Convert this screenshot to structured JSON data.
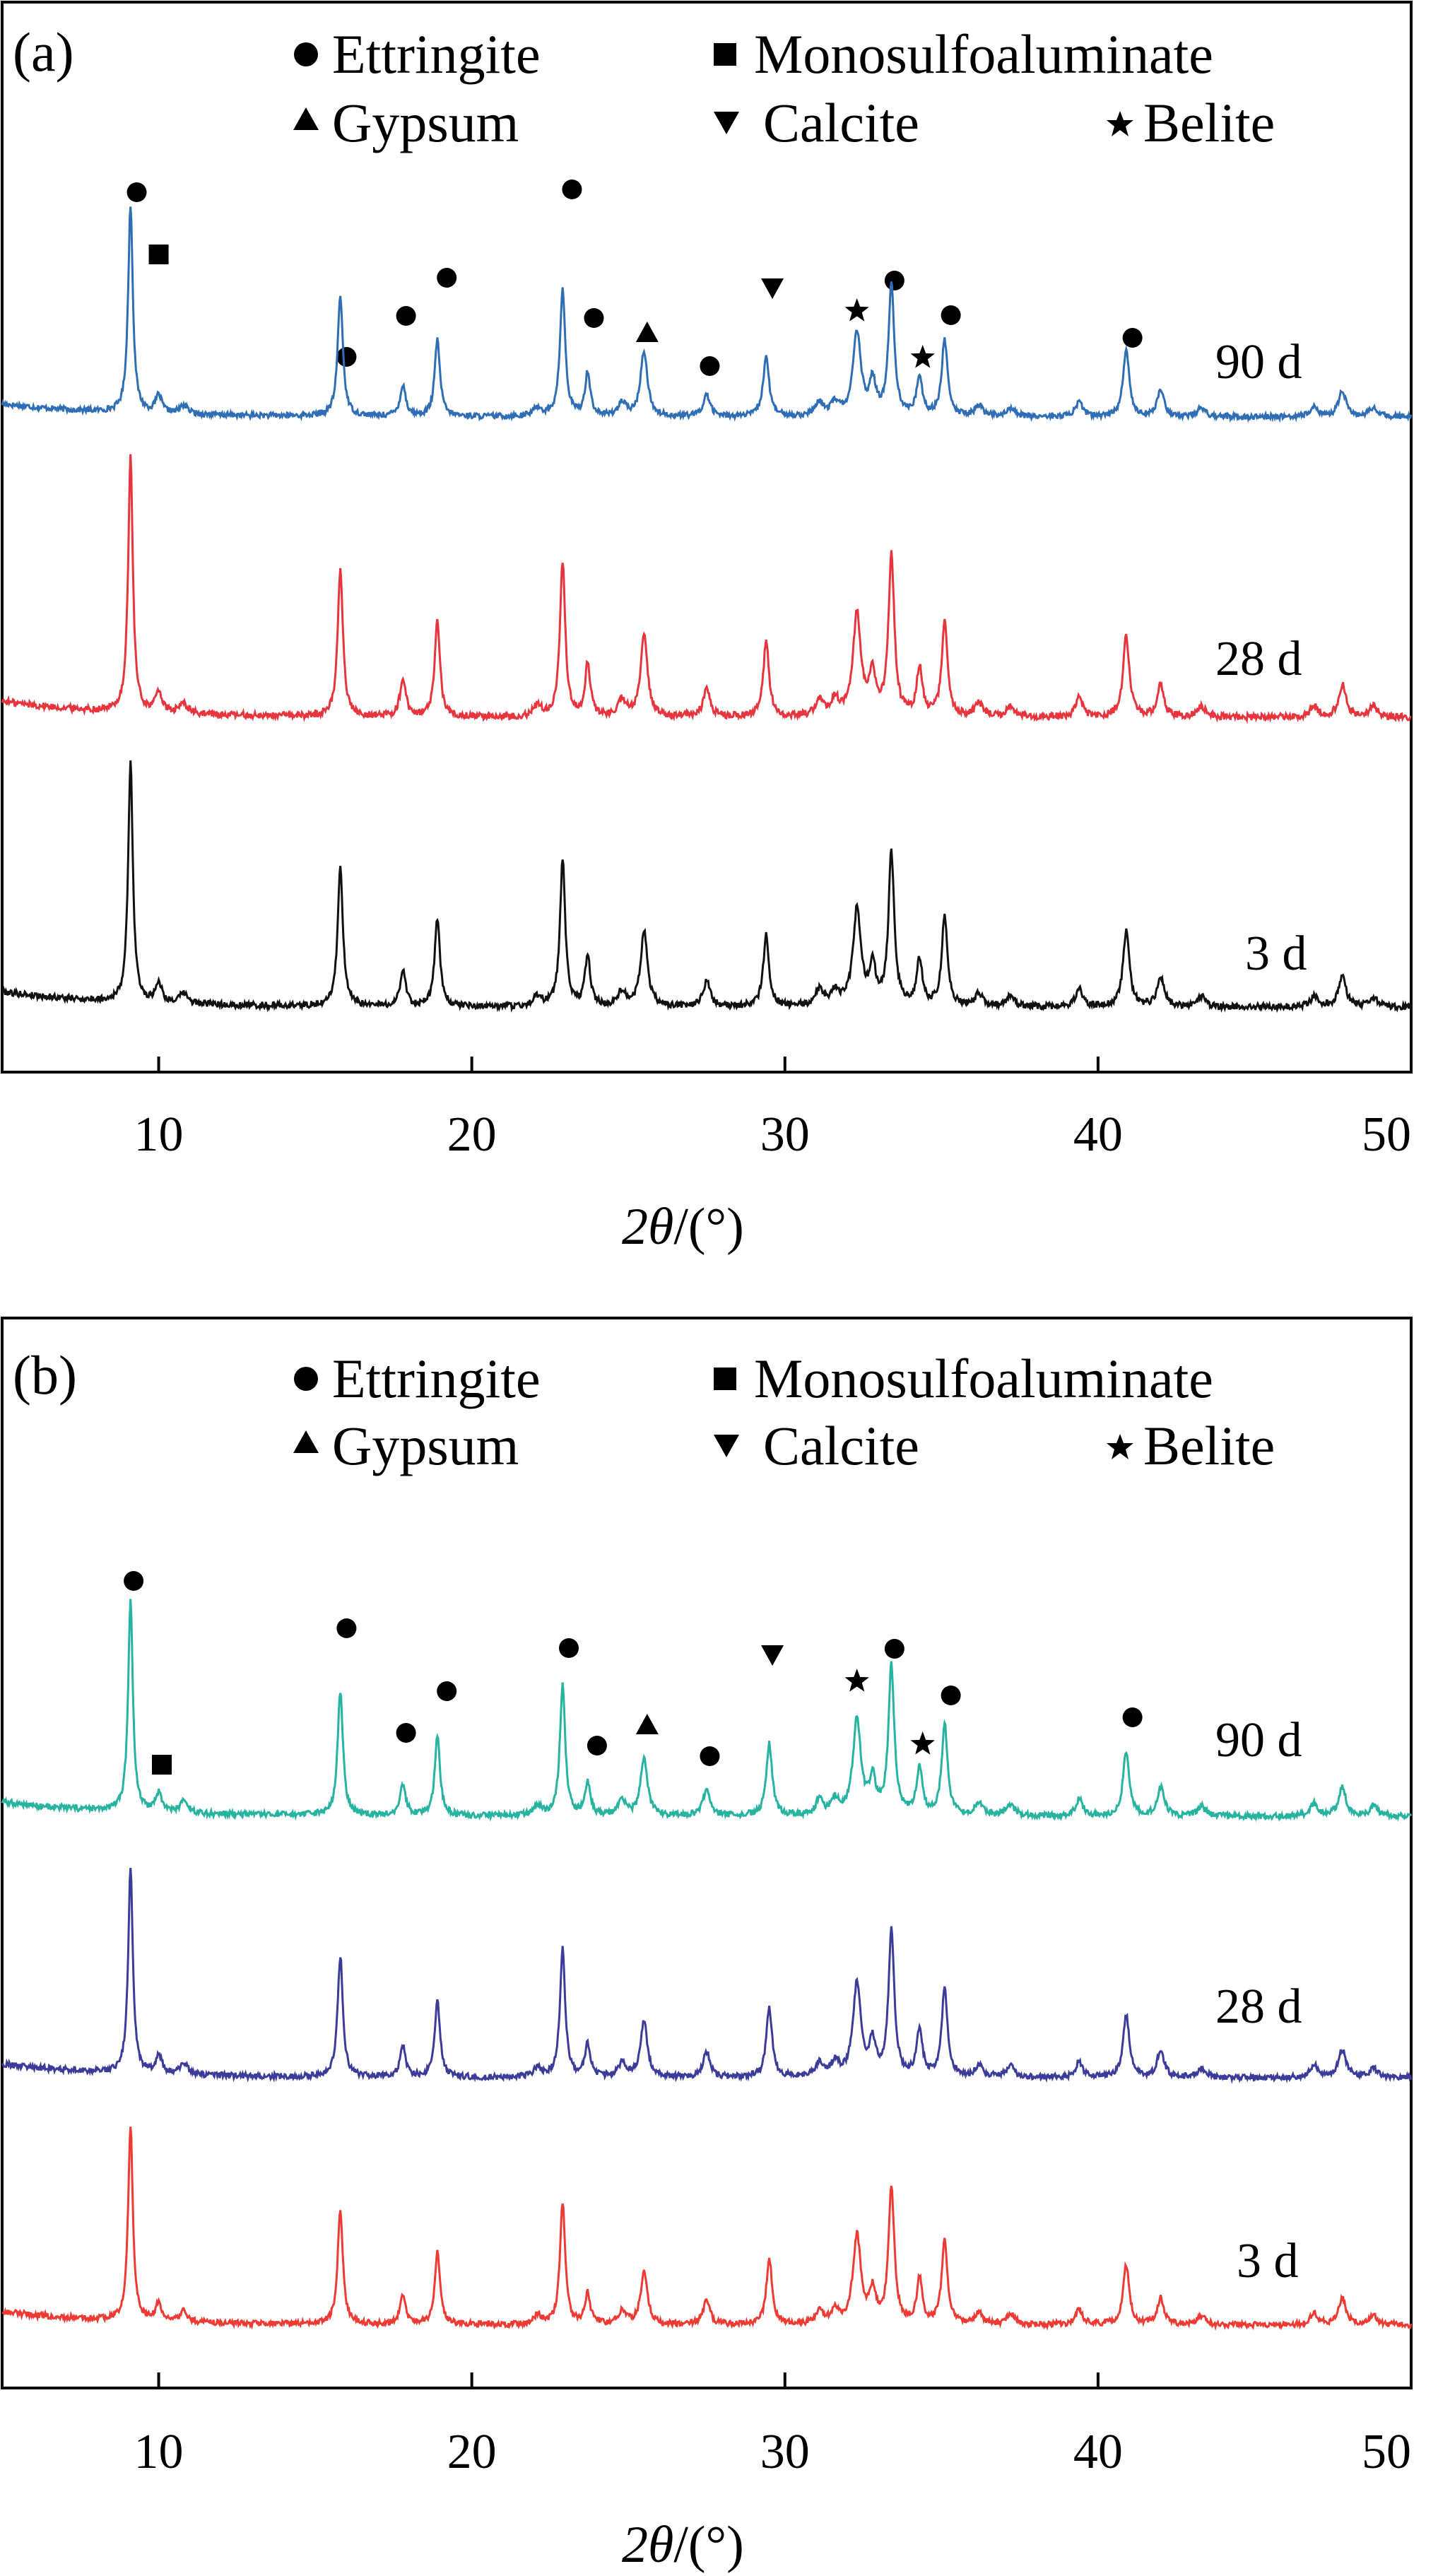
{
  "chart_data": [
    {
      "type": "line",
      "panel_label": "(a)",
      "xlabel_main": "2θ",
      "xlabel_unit": "/(°)",
      "xlim": [
        5,
        50
      ],
      "xticks": [
        10,
        20,
        30,
        40,
        50
      ],
      "y_ticks_shown": false,
      "grid": false,
      "legend": [
        {
          "marker": "circle",
          "name": "Ettringite"
        },
        {
          "marker": "square",
          "name": "Monosulfoaluminate"
        },
        {
          "marker": "triangle-up",
          "name": "Gypsum"
        },
        {
          "marker": "triangle-down",
          "name": "Calcite"
        },
        {
          "marker": "star",
          "name": "Belite"
        }
      ],
      "series": [
        {
          "name": "90 d",
          "color": "#2f6db5"
        },
        {
          "name": "28 d",
          "color": "#e8343c"
        },
        {
          "name": "3 d",
          "color": "#111111"
        }
      ],
      "peaks": [
        {
          "x": 9.1,
          "h": 0.95,
          "w": 0.09
        },
        {
          "x": 10.0,
          "h": 0.08,
          "w": 0.12
        },
        {
          "x": 10.8,
          "h": 0.04,
          "w": 0.15
        },
        {
          "x": 15.8,
          "h": 0.55,
          "w": 0.1
        },
        {
          "x": 17.8,
          "h": 0.14,
          "w": 0.11
        },
        {
          "x": 18.9,
          "h": 0.35,
          "w": 0.1
        },
        {
          "x": 22.1,
          "h": 0.04,
          "w": 0.15
        },
        {
          "x": 22.9,
          "h": 0.58,
          "w": 0.1
        },
        {
          "x": 23.7,
          "h": 0.2,
          "w": 0.1
        },
        {
          "x": 24.8,
          "h": 0.06,
          "w": 0.15
        },
        {
          "x": 25.5,
          "h": 0.3,
          "w": 0.13
        },
        {
          "x": 27.5,
          "h": 0.1,
          "w": 0.13
        },
        {
          "x": 29.4,
          "h": 0.28,
          "w": 0.11
        },
        {
          "x": 31.1,
          "h": 0.06,
          "w": 0.15
        },
        {
          "x": 31.6,
          "h": 0.06,
          "w": 0.15
        },
        {
          "x": 32.3,
          "h": 0.38,
          "w": 0.15
        },
        {
          "x": 32.8,
          "h": 0.15,
          "w": 0.12
        },
        {
          "x": 33.4,
          "h": 0.6,
          "w": 0.11
        },
        {
          "x": 34.3,
          "h": 0.18,
          "w": 0.11
        },
        {
          "x": 35.1,
          "h": 0.35,
          "w": 0.11
        },
        {
          "x": 36.2,
          "h": 0.05,
          "w": 0.15
        },
        {
          "x": 37.2,
          "h": 0.04,
          "w": 0.15
        },
        {
          "x": 39.4,
          "h": 0.07,
          "w": 0.13
        },
        {
          "x": 40.9,
          "h": 0.3,
          "w": 0.12
        },
        {
          "x": 42.0,
          "h": 0.12,
          "w": 0.13
        },
        {
          "x": 43.3,
          "h": 0.04,
          "w": 0.15
        },
        {
          "x": 46.9,
          "h": 0.04,
          "w": 0.15
        },
        {
          "x": 47.8,
          "h": 0.12,
          "w": 0.14
        },
        {
          "x": 48.8,
          "h": 0.04,
          "w": 0.15
        }
      ],
      "annotations": [
        {
          "marker": "circle",
          "x": 9.3
        },
        {
          "marker": "square",
          "x": 10.0
        },
        {
          "marker": "circle",
          "x": 16.0
        },
        {
          "marker": "circle",
          "x": 17.9
        },
        {
          "marker": "circle",
          "x": 19.2
        },
        {
          "marker": "circle",
          "x": 23.2
        },
        {
          "marker": "circle",
          "x": 23.9
        },
        {
          "marker": "triangle-up",
          "x": 25.6
        },
        {
          "marker": "circle",
          "x": 27.6
        },
        {
          "marker": "triangle-down",
          "x": 29.6
        },
        {
          "marker": "star",
          "x": 32.3
        },
        {
          "marker": "circle",
          "x": 33.5
        },
        {
          "marker": "star",
          "x": 34.4
        },
        {
          "marker": "circle",
          "x": 35.3
        },
        {
          "marker": "circle",
          "x": 41.1
        }
      ]
    },
    {
      "type": "line",
      "panel_label": "(b)",
      "xlabel_main": "2θ",
      "xlabel_unit": "/(°)",
      "xlim": [
        5,
        50
      ],
      "xticks": [
        10,
        20,
        30,
        40,
        50
      ],
      "y_ticks_shown": false,
      "grid": false,
      "legend": [
        {
          "marker": "circle",
          "name": "Ettringite"
        },
        {
          "marker": "square",
          "name": "Monosulfoaluminate"
        },
        {
          "marker": "triangle-up",
          "name": "Gypsum"
        },
        {
          "marker": "triangle-down",
          "name": "Calcite"
        },
        {
          "marker": "star",
          "name": "Belite"
        }
      ],
      "series": [
        {
          "name": "90 d",
          "color": "#26b3a0"
        },
        {
          "name": "28 d",
          "color": "#3b3b9a"
        },
        {
          "name": "3 d",
          "color": "#ee3a33"
        }
      ],
      "peaks": [
        {
          "x": 9.1,
          "h": 0.88,
          "w": 0.09
        },
        {
          "x": 10.0,
          "h": 0.08,
          "w": 0.12
        },
        {
          "x": 10.8,
          "h": 0.05,
          "w": 0.15
        },
        {
          "x": 15.8,
          "h": 0.52,
          "w": 0.1
        },
        {
          "x": 17.8,
          "h": 0.13,
          "w": 0.11
        },
        {
          "x": 18.9,
          "h": 0.33,
          "w": 0.1
        },
        {
          "x": 22.1,
          "h": 0.04,
          "w": 0.15
        },
        {
          "x": 22.9,
          "h": 0.55,
          "w": 0.1
        },
        {
          "x": 23.7,
          "h": 0.14,
          "w": 0.1
        },
        {
          "x": 24.8,
          "h": 0.06,
          "w": 0.15
        },
        {
          "x": 25.5,
          "h": 0.24,
          "w": 0.13
        },
        {
          "x": 27.5,
          "h": 0.11,
          "w": 0.13
        },
        {
          "x": 29.5,
          "h": 0.3,
          "w": 0.11
        },
        {
          "x": 31.1,
          "h": 0.06,
          "w": 0.15
        },
        {
          "x": 31.6,
          "h": 0.06,
          "w": 0.15
        },
        {
          "x": 32.3,
          "h": 0.4,
          "w": 0.15
        },
        {
          "x": 32.8,
          "h": 0.14,
          "w": 0.12
        },
        {
          "x": 33.4,
          "h": 0.62,
          "w": 0.11
        },
        {
          "x": 34.3,
          "h": 0.2,
          "w": 0.11
        },
        {
          "x": 35.1,
          "h": 0.38,
          "w": 0.11
        },
        {
          "x": 36.2,
          "h": 0.05,
          "w": 0.15
        },
        {
          "x": 37.2,
          "h": 0.05,
          "w": 0.15
        },
        {
          "x": 39.4,
          "h": 0.07,
          "w": 0.13
        },
        {
          "x": 40.9,
          "h": 0.27,
          "w": 0.12
        },
        {
          "x": 42.0,
          "h": 0.12,
          "w": 0.13
        },
        {
          "x": 43.3,
          "h": 0.04,
          "w": 0.15
        },
        {
          "x": 46.9,
          "h": 0.05,
          "w": 0.15
        },
        {
          "x": 47.8,
          "h": 0.12,
          "w": 0.14
        },
        {
          "x": 48.8,
          "h": 0.04,
          "w": 0.15
        }
      ],
      "annotations": [
        {
          "marker": "circle",
          "x": 9.2
        },
        {
          "marker": "square",
          "x": 10.1
        },
        {
          "marker": "circle",
          "x": 16.0
        },
        {
          "marker": "circle",
          "x": 17.9
        },
        {
          "marker": "circle",
          "x": 19.2
        },
        {
          "marker": "circle",
          "x": 23.1
        },
        {
          "marker": "circle",
          "x": 24.0
        },
        {
          "marker": "triangle-up",
          "x": 25.6
        },
        {
          "marker": "circle",
          "x": 27.6
        },
        {
          "marker": "triangle-down",
          "x": 29.6
        },
        {
          "marker": "star",
          "x": 32.3
        },
        {
          "marker": "circle",
          "x": 33.5
        },
        {
          "marker": "star",
          "x": 34.4
        },
        {
          "marker": "circle",
          "x": 35.3
        },
        {
          "marker": "circle",
          "x": 41.1
        }
      ]
    }
  ]
}
